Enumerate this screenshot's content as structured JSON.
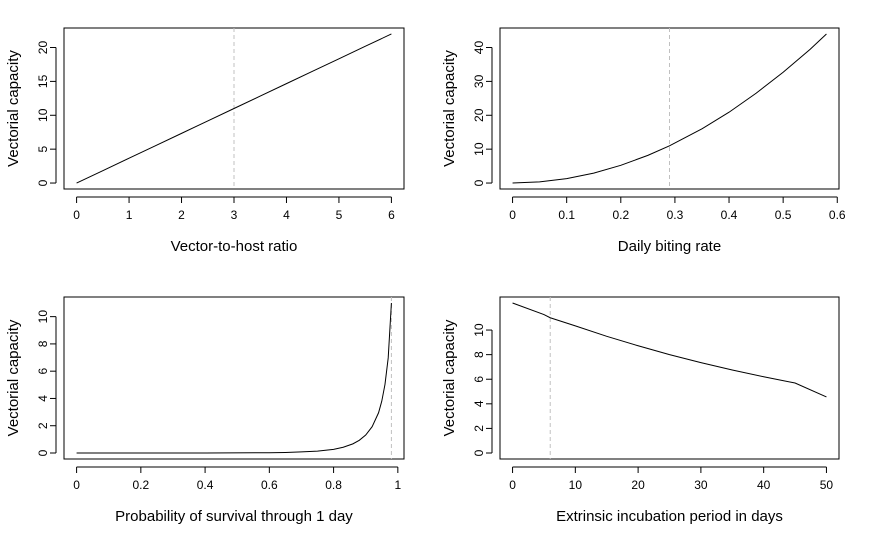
{
  "chart_data": [
    {
      "type": "line",
      "xlabel": "Vector-to-host ratio",
      "ylabel": "Vectorial capacity",
      "xlim": [
        0,
        6
      ],
      "ylim": [
        0,
        22
      ],
      "xticks": [
        0,
        1,
        2,
        3,
        4,
        5,
        6
      ],
      "yticks": [
        0,
        5,
        10,
        15,
        20
      ],
      "reference_x": 3,
      "colors": {
        "line": "#000000",
        "reference": "#c0c0c0"
      },
      "x": [
        0,
        0.5,
        1,
        1.5,
        2,
        2.5,
        3,
        3.5,
        4,
        4.5,
        5,
        5.5,
        6
      ],
      "y": [
        0,
        1.83,
        3.67,
        5.5,
        7.33,
        9.17,
        11.0,
        12.83,
        14.67,
        16.5,
        18.33,
        20.17,
        22.0
      ]
    },
    {
      "type": "line",
      "xlabel": "Daily biting rate",
      "ylabel": "Vectorial capacity",
      "xlim": [
        0,
        0.58
      ],
      "ylim": [
        0,
        44
      ],
      "xticks": [
        0.0,
        0.1,
        0.2,
        0.3,
        0.4,
        0.5,
        0.6
      ],
      "yticks": [
        0,
        10,
        20,
        30,
        40
      ],
      "reference_x": 0.29,
      "colors": {
        "line": "#000000",
        "reference": "#c0c0c0"
      },
      "x": [
        0,
        0.05,
        0.1,
        0.15,
        0.2,
        0.25,
        0.29,
        0.35,
        0.4,
        0.45,
        0.5,
        0.55,
        0.58
      ],
      "y": [
        0,
        0.33,
        1.31,
        2.94,
        5.23,
        8.17,
        11.0,
        16.0,
        20.9,
        26.5,
        32.7,
        39.5,
        44.0
      ]
    },
    {
      "type": "line",
      "xlabel": "Probability of survival through 1 day",
      "ylabel": "Vectorial capacity",
      "xlim": [
        0,
        0.98
      ],
      "ylim": [
        0,
        11
      ],
      "xticks": [
        0.0,
        0.2,
        0.4,
        0.6,
        0.8,
        1.0
      ],
      "yticks": [
        0,
        2,
        4,
        6,
        8,
        10
      ],
      "reference_x": 0.98,
      "colors": {
        "line": "#000000",
        "reference": "#c0c0c0"
      },
      "x": [
        0,
        0.2,
        0.4,
        0.6,
        0.65,
        0.7,
        0.75,
        0.8,
        0.83,
        0.86,
        0.88,
        0.9,
        0.92,
        0.94,
        0.95,
        0.96,
        0.97,
        0.98
      ],
      "y": [
        0,
        0,
        0.001,
        0.02,
        0.04,
        0.08,
        0.14,
        0.27,
        0.42,
        0.67,
        0.93,
        1.32,
        1.93,
        2.95,
        3.8,
        5.03,
        6.97,
        11.0
      ]
    },
    {
      "type": "line",
      "xlabel": "Extrinsic incubation period in days",
      "ylabel": "Vectorial capacity",
      "xlim": [
        0,
        50
      ],
      "ylim": [
        0,
        12.2
      ],
      "xticks": [
        0,
        10,
        20,
        30,
        40,
        50
      ],
      "yticks": [
        0,
        2,
        4,
        6,
        8,
        10
      ],
      "reference_x": 6,
      "colors": {
        "line": "#000000",
        "reference": "#c0c0c0"
      },
      "x": [
        0,
        5,
        6,
        10,
        15,
        20,
        25,
        30,
        35,
        40,
        45,
        50
      ],
      "y": [
        12.2,
        11.26,
        11.0,
        10.34,
        9.49,
        8.72,
        8.0,
        7.35,
        6.75,
        6.2,
        5.69,
        4.56
      ]
    }
  ]
}
